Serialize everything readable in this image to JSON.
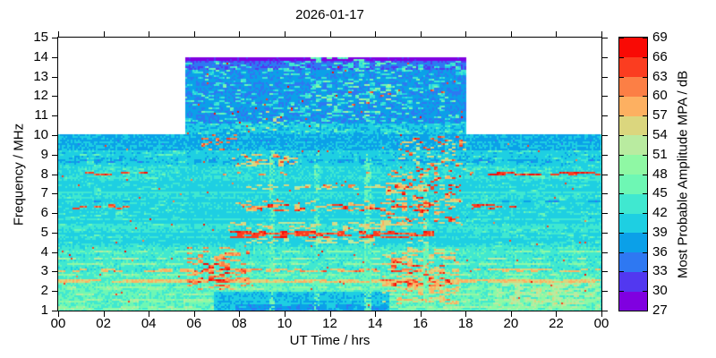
{
  "chart_data": {
    "type": "heatmap",
    "title": "2026-01-17",
    "xlabel": "UT Time / hrs",
    "ylabel": "Frequency / MHz",
    "xlim": [
      0,
      24
    ],
    "ylim": [
      1,
      15
    ],
    "xtick_step_hrs": 2,
    "xtick_labels": [
      "00",
      "02",
      "04",
      "06",
      "08",
      "10",
      "12",
      "14",
      "16",
      "18",
      "20",
      "22",
      "00"
    ],
    "ytick_labels": [
      "1",
      "2",
      "3",
      "4",
      "5",
      "6",
      "7",
      "8",
      "9",
      "10",
      "11",
      "12",
      "13",
      "14",
      "15"
    ],
    "grid": false,
    "colorbar": {
      "label": "Most Probable Amplitude MPA / dB",
      "ticks": [
        27,
        30,
        33,
        36,
        39,
        42,
        45,
        48,
        51,
        54,
        57,
        60,
        63,
        66,
        69
      ],
      "db_min": 27,
      "db_max": 69,
      "db_step": 3,
      "colors": [
        "#8000e0",
        "#5238f0",
        "#2e78f2",
        "#0ba0e8",
        "#1ecfe2",
        "#40e8d0",
        "#6ef7b4",
        "#8ff8a4",
        "#b9eba0",
        "#dbd67e",
        "#fdb061",
        "#fc7f45",
        "#fb3d20",
        "#f90a05"
      ]
    },
    "coverage": [
      {
        "t": [
          0,
          5.6
        ],
        "f": [
          1,
          10
        ]
      },
      {
        "t": [
          5.6,
          18
        ],
        "f": [
          1,
          14
        ]
      },
      {
        "t": [
          18,
          24
        ],
        "f": [
          1,
          10
        ]
      }
    ],
    "base_db": 41.3,
    "render": {
      "seed": 7,
      "row_jitter": 1.0,
      "cell_jitter": 1.4,
      "stripe_p": 0.16,
      "stripe_db": 2.6
    },
    "fields": [
      {
        "t": [
          0,
          24
        ],
        "f": [
          3.0,
          4.3
        ],
        "db": 43.5,
        "p": 1,
        "len": 4,
        "jit": 1.6
      },
      {
        "t": [
          0,
          24
        ],
        "f": [
          1.0,
          3.0
        ],
        "db": 45.0,
        "p": 1,
        "len": 4,
        "jit": 1.6
      },
      {
        "t": [
          0,
          24
        ],
        "f": [
          9.2,
          10.0
        ],
        "db": 38.6,
        "p": 1,
        "len": 4,
        "jit": 1.2
      },
      {
        "t": [
          0,
          24
        ],
        "f": [
          8.35,
          9.2
        ],
        "db": 40.6,
        "p": 1,
        "len": 4,
        "jit": 1.3
      },
      {
        "t": [
          5.6,
          18
        ],
        "f": [
          10.0,
          10.55
        ],
        "db": 39.3,
        "p": 1,
        "len": 4,
        "jit": 1.2
      },
      {
        "t": [
          5.6,
          18
        ],
        "f": [
          10.55,
          13.35
        ],
        "db": 36.4,
        "p": 1,
        "len": 4,
        "jit": 1.2
      },
      {
        "t": [
          5.6,
          18
        ],
        "f": [
          13.35,
          13.82
        ],
        "db": 33.6,
        "p": 1,
        "len": 4,
        "jit": 1.2
      },
      {
        "t": [
          5.6,
          18
        ],
        "f": [
          13.82,
          14.01
        ],
        "db": 28.2,
        "p": 1,
        "len": 4,
        "jit": 1.0
      },
      {
        "t": [
          5.6,
          18
        ],
        "f": [
          10.0,
          13.8
        ],
        "db": 42.5,
        "p": 0.16,
        "len": 3,
        "jit": 1.5
      },
      {
        "t": [
          5.6,
          18
        ],
        "f": [
          10.0,
          13.8
        ],
        "db": 46.0,
        "p": 0.05,
        "len": 2,
        "jit": 1.5
      },
      {
        "t": [
          8.8,
          14.8
        ],
        "f": [
          13.3,
          13.95
        ],
        "db": 45.0,
        "p": 0.1,
        "len": 3,
        "jit": 1.5
      },
      {
        "t": [
          11.2,
          15.0
        ],
        "f": [
          10.6,
          12.7
        ],
        "db": 50.0,
        "p": 0.07,
        "len": 3,
        "jit": 2.0
      },
      {
        "t": [
          11.8,
          14.7
        ],
        "f": [
          11.5,
          12.4
        ],
        "db": 64.0,
        "p": 0.035,
        "len": 2,
        "jit": 2.5
      },
      {
        "t": [
          15.6,
          17.2
        ],
        "f": [
          12.2,
          12.7
        ],
        "db": 63.0,
        "p": 0.06,
        "len": 2,
        "jit": 2.5
      },
      {
        "t": [
          8.3,
          9.8
        ],
        "f": [
          10.2,
          11.2
        ],
        "db": 55.0,
        "p": 0.05,
        "len": 2,
        "jit": 2.0
      },
      {
        "t": [
          5.6,
          18
        ],
        "f": [
          10.0,
          13.9
        ],
        "db": 66.0,
        "p": 0.006,
        "len": 1,
        "jit": 2.0
      },
      {
        "t": [
          0,
          5.6
        ],
        "f": [
          4.0,
          9.2
        ],
        "db": 44.5,
        "p": 0.1,
        "len": 4,
        "jit": 1.5
      },
      {
        "t": [
          18,
          24
        ],
        "f": [
          4.0,
          9.2
        ],
        "db": 44.5,
        "p": 0.12,
        "len": 4,
        "jit": 1.5
      },
      {
        "t": [
          0,
          24
        ],
        "f": [
          8.58,
          8.72
        ],
        "db": 37.3,
        "p": 0.35,
        "len": 4,
        "jit": 0.8
      },
      {
        "t": [
          0,
          5.6
        ],
        "f": [
          6.55,
          6.68
        ],
        "db": 37.3,
        "p": 0.3,
        "len": 4,
        "jit": 0.8
      },
      {
        "t": [
          18,
          24
        ],
        "f": [
          6.55,
          6.68
        ],
        "db": 37.3,
        "p": 0.3,
        "len": 4,
        "jit": 0.8
      },
      {
        "t": [
          0,
          24
        ],
        "f": [
          1.08,
          1.2
        ],
        "db": 50.5,
        "p": 0.55,
        "len": 5,
        "jit": 1.6
      },
      {
        "t": [
          0,
          24
        ],
        "f": [
          1.45,
          1.58
        ],
        "db": 50.0,
        "p": 0.5,
        "len": 5,
        "jit": 1.6
      },
      {
        "t": [
          0,
          24
        ],
        "f": [
          1.75,
          1.88
        ],
        "db": 50.5,
        "p": 0.45,
        "len": 5,
        "jit": 1.6
      },
      {
        "t": [
          0,
          24
        ],
        "f": [
          2.1,
          2.2
        ],
        "db": 49.5,
        "p": 0.4,
        "len": 5,
        "jit": 1.6
      },
      {
        "t": [
          0,
          24
        ],
        "f": [
          2.78,
          2.9
        ],
        "db": 50.5,
        "p": 0.5,
        "len": 5,
        "jit": 1.6
      },
      {
        "t": [
          0,
          24
        ],
        "f": [
          3.3,
          3.42
        ],
        "db": 50.0,
        "p": 0.45,
        "len": 5,
        "jit": 1.6
      },
      {
        "t": [
          0,
          24
        ],
        "f": [
          3.62,
          3.74
        ],
        "db": 51.0,
        "p": 0.4,
        "len": 5,
        "jit": 1.6
      },
      {
        "t": [
          0,
          24
        ],
        "f": [
          3.95,
          4.05
        ],
        "db": 49.0,
        "p": 0.35,
        "len": 5,
        "jit": 1.6
      },
      {
        "t": [
          6.9,
          14.6
        ],
        "f": [
          1.0,
          1.95
        ],
        "db": 39.4,
        "p": 1,
        "len": 4,
        "jit": 1.0
      },
      {
        "t": [
          7.8,
          14.5
        ],
        "f": [
          1.0,
          1.3
        ],
        "db": 36.8,
        "p": 0.8,
        "len": 5,
        "jit": 1.0
      },
      {
        "t": [
          19.2,
          24
        ],
        "f": [
          1.05,
          2.7
        ],
        "db": 50.5,
        "p": 0.45,
        "len": 4,
        "jit": 1.8
      },
      {
        "t": [
          20.0,
          23.6
        ],
        "f": [
          1.3,
          2.4
        ],
        "db": 53.0,
        "p": 0.25,
        "len": 3,
        "jit": 1.8
      },
      {
        "t": [
          0,
          24
        ],
        "f": [
          2.42,
          2.62
        ],
        "db": 56.5,
        "p": 0.9,
        "len": 6,
        "jit": 2.0
      },
      {
        "t": [
          5.7,
          8.3
        ],
        "f": [
          2.44,
          2.6
        ],
        "db": 63.5,
        "p": 0.5,
        "len": 4,
        "jit": 2.0
      },
      {
        "t": [
          13.9,
          16.7
        ],
        "f": [
          2.44,
          2.6
        ],
        "db": 63.5,
        "p": 0.45,
        "len": 4,
        "jit": 2.0
      },
      {
        "t": [
          0,
          24
        ],
        "f": [
          2.99,
          3.12
        ],
        "db": 57.5,
        "p": 0.45,
        "len": 4,
        "jit": 2.0
      },
      {
        "t": [
          6.0,
          17.0
        ],
        "f": [
          2.99,
          3.12
        ],
        "db": 62.0,
        "p": 0.2,
        "len": 3,
        "jit": 2.0
      },
      {
        "t": [
          5.7,
          8.5
        ],
        "f": [
          2.05,
          4.25
        ],
        "db": 60.0,
        "p": 0.28,
        "len": 3,
        "jit": 2.5
      },
      {
        "t": [
          6.3,
          7.6
        ],
        "f": [
          2.2,
          3.4
        ],
        "db": 66.0,
        "p": 0.2,
        "len": 3,
        "jit": 2.0
      },
      {
        "t": [
          14.3,
          17.7
        ],
        "f": [
          1.35,
          4.3
        ],
        "db": 57.0,
        "p": 0.3,
        "len": 3,
        "jit": 2.5
      },
      {
        "t": [
          14.6,
          17.3
        ],
        "f": [
          2.2,
          3.6
        ],
        "db": 64.0,
        "p": 0.22,
        "len": 3,
        "jit": 2.0
      },
      {
        "t": [
          9.35,
          9.6
        ],
        "f": [
          1.0,
          9.2
        ],
        "db": 46.5,
        "p": 0.5,
        "len": 1,
        "jit": 1.5
      },
      {
        "t": [
          11.3,
          11.55
        ],
        "f": [
          1.0,
          9.2
        ],
        "db": 46.0,
        "p": 0.45,
        "len": 1,
        "jit": 1.5
      },
      {
        "t": [
          13.55,
          13.85
        ],
        "f": [
          1.0,
          9.2
        ],
        "db": 46.5,
        "p": 0.5,
        "len": 1,
        "jit": 1.5
      },
      {
        "t": [
          16.1,
          16.4
        ],
        "f": [
          1.0,
          8.0
        ],
        "db": 47.0,
        "p": 0.5,
        "len": 1,
        "jit": 1.5
      },
      {
        "t": [
          7.3,
          16.6
        ],
        "f": [
          4.72,
          5.08
        ],
        "db": 64.0,
        "p": 0.5,
        "len": 4,
        "jit": 2.5
      },
      {
        "t": [
          7.5,
          16.3
        ],
        "f": [
          5.1,
          5.5
        ],
        "db": 55.0,
        "p": 0.3,
        "len": 3,
        "jit": 2.0
      },
      {
        "t": [
          7.5,
          16.5
        ],
        "f": [
          4.4,
          4.7
        ],
        "db": 54.0,
        "p": 0.25,
        "len": 3,
        "jit": 2.0
      },
      {
        "t": [
          7.8,
          16.9
        ],
        "f": [
          6.05,
          6.62
        ],
        "db": 58.0,
        "p": 0.3,
        "len": 3,
        "jit": 2.5
      },
      {
        "t": [
          8.3,
          16.6
        ],
        "f": [
          6.1,
          6.5
        ],
        "db": 65.0,
        "p": 0.18,
        "len": 3,
        "jit": 2.0
      },
      {
        "t": [
          7.9,
          16.6
        ],
        "f": [
          7.22,
          7.5
        ],
        "db": 55.0,
        "p": 0.3,
        "len": 3,
        "jit": 2.0
      },
      {
        "t": [
          9.0,
          16.0
        ],
        "f": [
          7.25,
          7.45
        ],
        "db": 62.0,
        "p": 0.1,
        "len": 2,
        "jit": 2.0
      },
      {
        "t": [
          7.7,
          10.6
        ],
        "f": [
          8.38,
          9.05
        ],
        "db": 56.0,
        "p": 0.3,
        "len": 3,
        "jit": 2.0
      },
      {
        "t": [
          8.0,
          10.2
        ],
        "f": [
          8.45,
          8.95
        ],
        "db": 63.0,
        "p": 0.12,
        "len": 2,
        "jit": 2.0
      },
      {
        "t": [
          0,
          4.7
        ],
        "f": [
          7.9,
          8.1
        ],
        "db": 64.5,
        "p": 0.45,
        "len": 5,
        "jit": 2.0
      },
      {
        "t": [
          18.55,
          24
        ],
        "f": [
          7.9,
          8.1
        ],
        "db": 65.0,
        "p": 0.55,
        "len": 5,
        "jit": 2.0
      },
      {
        "t": [
          5.0,
          18.5
        ],
        "f": [
          7.92,
          8.08
        ],
        "db": 60.0,
        "p": 0.07,
        "len": 2,
        "jit": 2.0
      },
      {
        "t": [
          0.4,
          3.3
        ],
        "f": [
          6.2,
          6.42
        ],
        "db": 63.5,
        "p": 0.3,
        "len": 4,
        "jit": 2.0
      },
      {
        "t": [
          18.3,
          20.5
        ],
        "f": [
          6.2,
          6.42
        ],
        "db": 64.5,
        "p": 0.35,
        "len": 4,
        "jit": 2.0
      },
      {
        "t": [
          14.2,
          17.9
        ],
        "f": [
          5.4,
          8.2
        ],
        "db": 57.0,
        "p": 0.2,
        "len": 3,
        "jit": 2.5
      },
      {
        "t": [
          14.5,
          17.8
        ],
        "f": [
          5.5,
          8.1
        ],
        "db": 64.5,
        "p": 0.1,
        "len": 2,
        "jit": 2.0
      },
      {
        "t": [
          15.0,
          18.0
        ],
        "f": [
          8.2,
          9.8
        ],
        "db": 55.0,
        "p": 0.15,
        "len": 2,
        "jit": 2.0
      },
      {
        "t": [
          15.1,
          17.9
        ],
        "f": [
          8.1,
          10.0
        ],
        "db": 63.5,
        "p": 0.09,
        "len": 2,
        "jit": 2.0
      },
      {
        "t": [
          6.3,
          8.0
        ],
        "f": [
          9.2,
          10.0
        ],
        "db": 62.0,
        "p": 0.1,
        "len": 2,
        "jit": 2.0
      },
      {
        "t": [
          0,
          24
        ],
        "f": [
          1.2,
          9.6
        ],
        "db": 64.0,
        "p": 0.004,
        "len": 1,
        "jit": 2.0
      }
    ]
  }
}
